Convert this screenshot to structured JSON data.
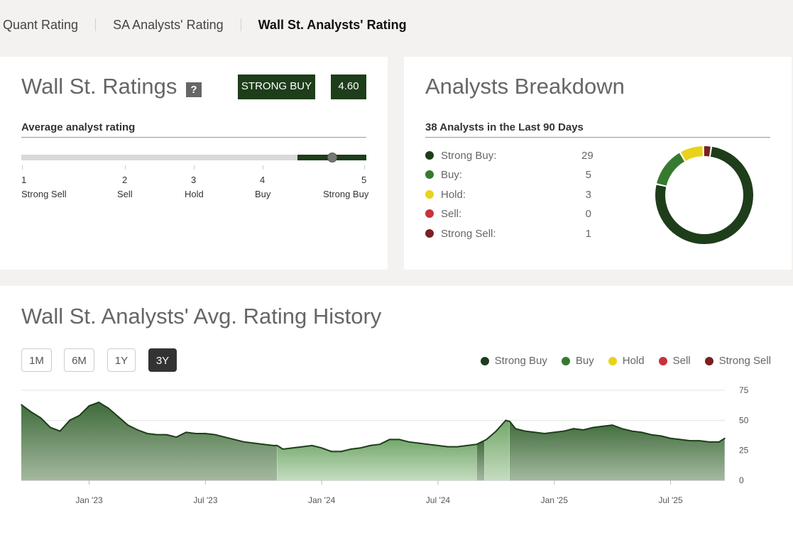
{
  "tabs": [
    {
      "label": "Quant Rating",
      "active": false
    },
    {
      "label": "SA Analysts' Rating",
      "active": false
    },
    {
      "label": "Wall St. Analysts' Rating",
      "active": true
    }
  ],
  "ratings": {
    "title": "Wall St. Ratings",
    "help": "?",
    "badge_label": "STRONG BUY",
    "score": "4.60",
    "subhead": "Average analyst rating",
    "scale": [
      {
        "num": "1",
        "label": "Strong Sell"
      },
      {
        "num": "2",
        "label": "Sell"
      },
      {
        "num": "3",
        "label": "Hold"
      },
      {
        "num": "4",
        "label": "Buy"
      },
      {
        "num": "5",
        "label": "Strong Buy"
      }
    ],
    "marker_value": 4.6,
    "colors": {
      "accent": "#1e3d1a",
      "track": "#d9d9d9"
    }
  },
  "breakdown": {
    "title": "Analysts Breakdown",
    "subhead": "38 Analysts in the Last 90 Days",
    "items": [
      {
        "label": "Strong Buy:",
        "count": "29",
        "color": "#1e3d1a"
      },
      {
        "label": "Buy:",
        "count": "5",
        "color": "#367a2f"
      },
      {
        "label": "Hold:",
        "count": "3",
        "color": "#e8d21c"
      },
      {
        "label": "Sell:",
        "count": "0",
        "color": "#c8333a"
      },
      {
        "label": "Strong Sell:",
        "count": "1",
        "color": "#7a2020"
      }
    ]
  },
  "history": {
    "title": "Wall St. Analysts' Avg. Rating History",
    "periods": [
      {
        "label": "1M",
        "active": false
      },
      {
        "label": "6M",
        "active": false
      },
      {
        "label": "1Y",
        "active": false
      },
      {
        "label": "3Y",
        "active": true
      }
    ],
    "legend": [
      {
        "label": "Strong Buy",
        "color": "#1e3d1a"
      },
      {
        "label": "Buy",
        "color": "#367a2f"
      },
      {
        "label": "Hold",
        "color": "#e8d21c"
      },
      {
        "label": "Sell",
        "color": "#c8333a"
      },
      {
        "label": "Strong Sell",
        "color": "#7a2020"
      }
    ]
  },
  "chart_data": {
    "type": "area",
    "title": "",
    "xlabel": "",
    "ylabel": "",
    "ylim": [
      0,
      75
    ],
    "y_ticks": [
      75,
      50,
      25,
      0
    ],
    "x_ticks": [
      "Jan '23",
      "Jul '23",
      "Jan '24",
      "Jul '24",
      "Jan '25",
      "Jul '25"
    ],
    "x_tick_positions": [
      3.5,
      9.5,
      15.5,
      21.5,
      27.5,
      33.5
    ],
    "x_range": [
      0,
      36.3
    ],
    "grid": true,
    "x": [
      0,
      0.5,
      1,
      1.5,
      2,
      2.5,
      3,
      3.5,
      4,
      4.5,
      5,
      5.5,
      6,
      6.5,
      7,
      7.5,
      8,
      8.5,
      9,
      9.5,
      10,
      10.5,
      11,
      11.5,
      12,
      12.5,
      13,
      13.2,
      13.5,
      14,
      14.5,
      15,
      15.5,
      16,
      16.5,
      17,
      17.5,
      18,
      18.5,
      19,
      19.5,
      20,
      20.5,
      21,
      21.5,
      22,
      22.5,
      23,
      23.5,
      24,
      24.5,
      25,
      25.2,
      25.5,
      26,
      26.5,
      27,
      27.5,
      28,
      28.5,
      29,
      29.5,
      30,
      30.5,
      31,
      31.5,
      32,
      32.5,
      33,
      33.5,
      34,
      34.5,
      35,
      35.5,
      36,
      36.3
    ],
    "series": [
      {
        "name": "Avg. Rating",
        "values": [
          63,
          57,
          52,
          44,
          41,
          50,
          54,
          62,
          65,
          60,
          53,
          46,
          42,
          39,
          38,
          38,
          36,
          40,
          39,
          39,
          38,
          36,
          34,
          32,
          31,
          30,
          29,
          29,
          26,
          27,
          28,
          29,
          27,
          24,
          24,
          26,
          27,
          29,
          30,
          34,
          34,
          32,
          31,
          30,
          29,
          28,
          28,
          29,
          30,
          34,
          41,
          50,
          49,
          43,
          41,
          40,
          39,
          40,
          41,
          43,
          42,
          44,
          45,
          46,
          43,
          41,
          40,
          38,
          37,
          35,
          34,
          33,
          33,
          32,
          32,
          35
        ]
      }
    ],
    "segments": [
      {
        "from": 0,
        "to": 13.2,
        "rating": "Strong Buy"
      },
      {
        "from": 13.2,
        "to": 23.5,
        "rating": "Buy"
      },
      {
        "from": 23.5,
        "to": 23.9,
        "rating": "Strong Buy"
      },
      {
        "from": 23.9,
        "to": 25.2,
        "rating": "Buy"
      },
      {
        "from": 25.2,
        "to": 36.3,
        "rating": "Strong Buy"
      }
    ]
  }
}
